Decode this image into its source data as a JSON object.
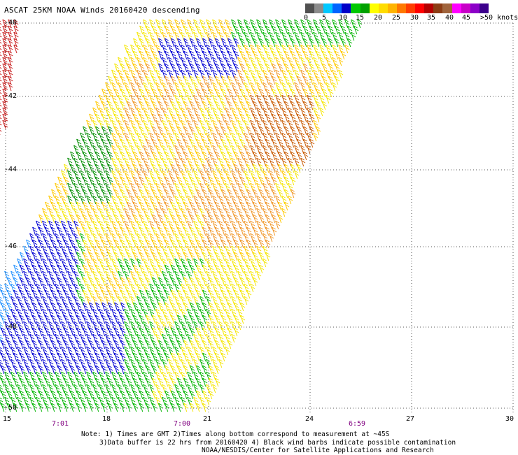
{
  "title": "ASCAT 25KM NOAA Winds 20160420 descending",
  "scale": {
    "colors": [
      "#505050",
      "#8c8c8c",
      "#00c8ff",
      "#0064ff",
      "#0000c8",
      "#00c800",
      "#00a000",
      "#ffff00",
      "#ffdc00",
      "#ffb400",
      "#ff7800",
      "#ff3c00",
      "#ff0000",
      "#b40000",
      "#8c3c14",
      "#a0643c",
      "#ff00ff",
      "#c800c8",
      "#8c00c8",
      "#3c008c"
    ],
    "labels": [
      "0",
      "5",
      "10",
      "15",
      "20",
      "25",
      "30",
      "35",
      "40",
      "45",
      ">50 knots"
    ]
  },
  "axes": {
    "lat_labels": [
      "-40",
      "-42",
      "-44",
      "-46",
      "-48",
      "-50"
    ],
    "lon_labels": [
      "15",
      "18",
      "21",
      "24",
      "27",
      "30"
    ],
    "time_labels": [
      "7:01",
      "7:00",
      "6:59"
    ]
  },
  "notes": [
    "Note: 1) Times are GMT 2)Times along bottom correspond to measurement at ~45S",
    "3)Data buffer is 22 hrs from 20160420 4) Black wind barbs indicate possible contamination",
    "NOAA/NESDIS/Center for Satellite Applications and Research"
  ],
  "colors": {
    "blue": "#0000d2",
    "lightblue": "#1e90ff",
    "green": "#00b400",
    "darkgreen": "#008c00",
    "yellow": "#f5e600",
    "gold": "#ffc800",
    "orange": "#f09628",
    "darkorange": "#c85a00",
    "red": "#c81e1e"
  }
}
